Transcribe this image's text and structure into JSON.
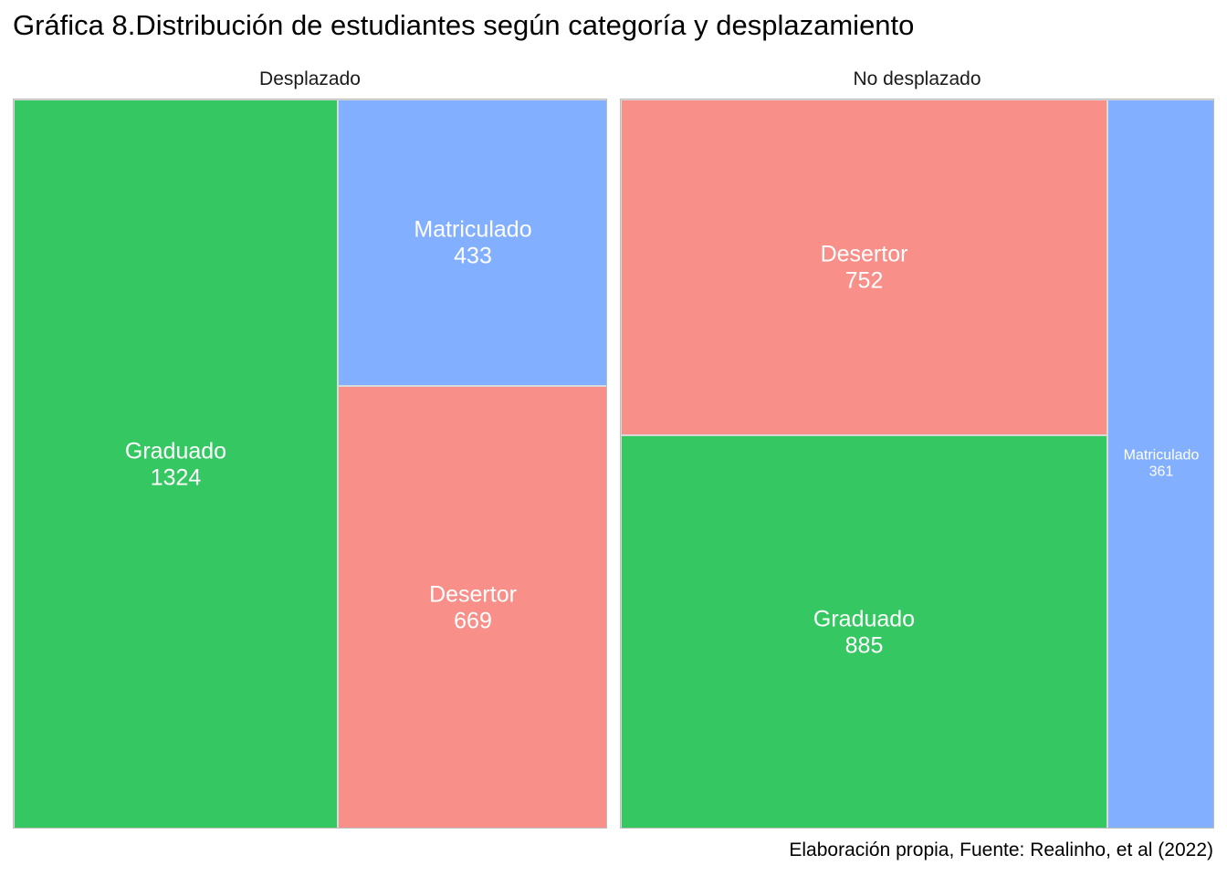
{
  "title": "Gráfica 8.Distribución de estudiantes según categoría y desplazamiento",
  "caption": "Elaboración propia, Fuente: Realinho, et al (2022)",
  "colors": {
    "Graduado": "#35C862",
    "Matriculado": "#82AFFF",
    "Desertor": "#F88F89"
  },
  "chart_data": {
    "type": "treemap",
    "title": "Gráfica 8.Distribución de estudiantes según categoría y desplazamiento",
    "caption": "Elaboración propia, Fuente: Realinho, et al (2022)",
    "panels": [
      {
        "name": "Desplazado",
        "items": [
          {
            "category": "Graduado",
            "value": 1324
          },
          {
            "category": "Matriculado",
            "value": 433
          },
          {
            "category": "Desertor",
            "value": 669
          }
        ]
      },
      {
        "name": "No desplazado",
        "items": [
          {
            "category": "Desertor",
            "value": 752
          },
          {
            "category": "Graduado",
            "value": 885
          },
          {
            "category": "Matriculado",
            "value": 361
          }
        ]
      }
    ]
  }
}
